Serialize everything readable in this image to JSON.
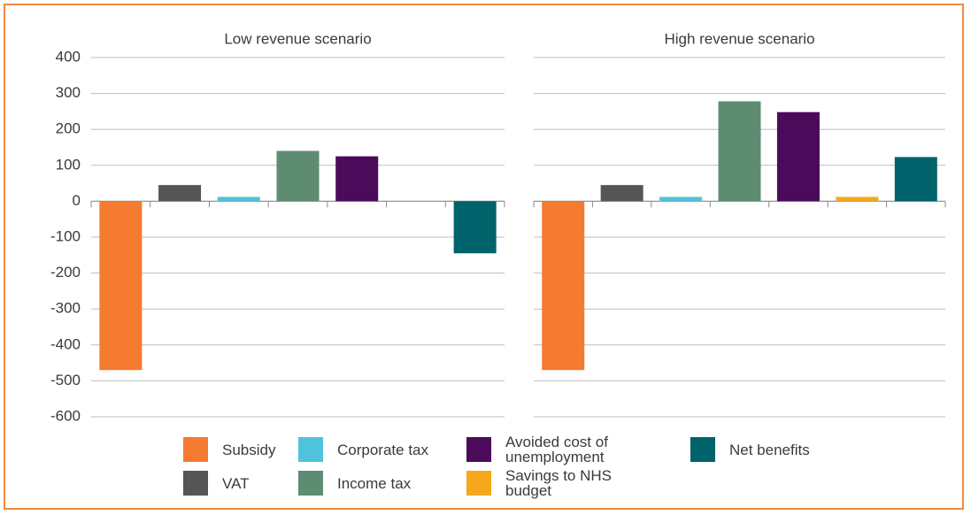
{
  "chart_data": {
    "type": "bar",
    "panels": [
      "Low revenue scenario",
      "High revenue scenario"
    ],
    "series": [
      {
        "name": "Subsidy",
        "color": "#f47b30",
        "values": [
          -470,
          -470
        ]
      },
      {
        "name": "VAT",
        "color": "#555555",
        "values": [
          45,
          45
        ]
      },
      {
        "name": "Corporate tax",
        "color": "#4fc3dc",
        "values": [
          12,
          12
        ]
      },
      {
        "name": "Income tax",
        "color": "#5e8c72",
        "values": [
          140,
          278
        ]
      },
      {
        "name": "Avoided cost of unemployment",
        "color": "#4b0a5a",
        "values": [
          125,
          248
        ]
      },
      {
        "name": "Savings to NHS budget",
        "color": "#f5a81c",
        "values": [
          0,
          12
        ]
      },
      {
        "name": "Net benefits",
        "color": "#00626a",
        "values": [
          -145,
          123
        ]
      }
    ],
    "ylim": [
      -600,
      400
    ],
    "yticks": [
      -600,
      -500,
      -400,
      -300,
      -200,
      -100,
      0,
      100,
      200,
      300,
      400
    ],
    "grid": true
  }
}
